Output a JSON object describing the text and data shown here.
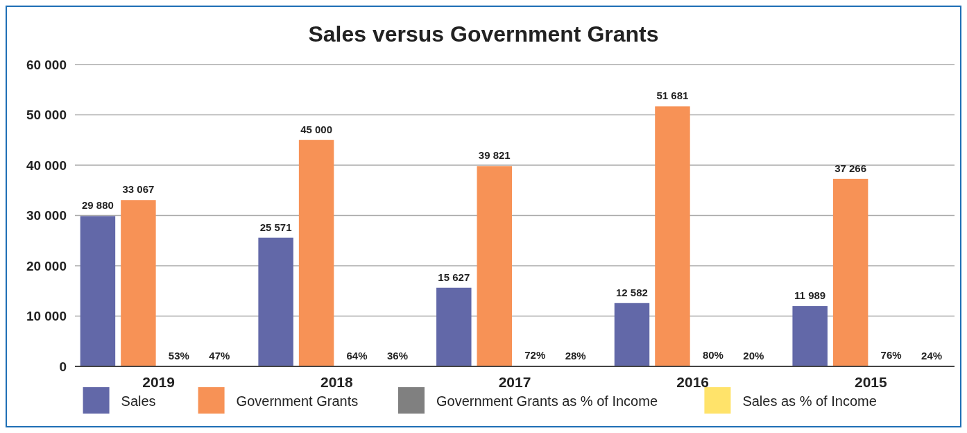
{
  "chart_data": {
    "type": "bar",
    "title": "Sales versus Government Grants",
    "categories": [
      "2019",
      "2018",
      "2017",
      "2016",
      "2015"
    ],
    "series": [
      {
        "name": "Sales",
        "color": "#6268a8",
        "values": [
          29880,
          25571,
          15627,
          12582,
          11989
        ],
        "value_labels": [
          "29 880",
          "25 571",
          "15 627",
          "12 582",
          "11 989"
        ]
      },
      {
        "name": "Government Grants",
        "color": "#f79256",
        "values": [
          33067,
          45000,
          39821,
          51681,
          37266
        ],
        "value_labels": [
          "33 067",
          "45 000",
          "39 821",
          "51 681",
          "37 266"
        ]
      },
      {
        "name": "Government Grants as % of Income",
        "color": "#808080",
        "values": [
          53,
          64,
          72,
          80,
          76
        ],
        "value_labels": [
          "53%",
          "64%",
          "72%",
          "80%",
          "76%"
        ]
      },
      {
        "name": "Sales as % of Income",
        "color": "#ffe36a",
        "values": [
          47,
          36,
          28,
          20,
          24
        ],
        "value_labels": [
          "47%",
          "36%",
          "28%",
          "20%",
          "24%"
        ]
      }
    ],
    "ylim": [
      0,
      60000
    ],
    "yticks": [
      {
        "value": 0,
        "label": "0"
      },
      {
        "value": 10000,
        "label": "10 000"
      },
      {
        "value": 20000,
        "label": "20 000"
      },
      {
        "value": 30000,
        "label": "30 000"
      },
      {
        "value": 40000,
        "label": "40 000"
      },
      {
        "value": 50000,
        "label": "50 000"
      },
      {
        "value": 60000,
        "label": "60 000"
      }
    ],
    "grid": "y",
    "legend": "bottom"
  }
}
